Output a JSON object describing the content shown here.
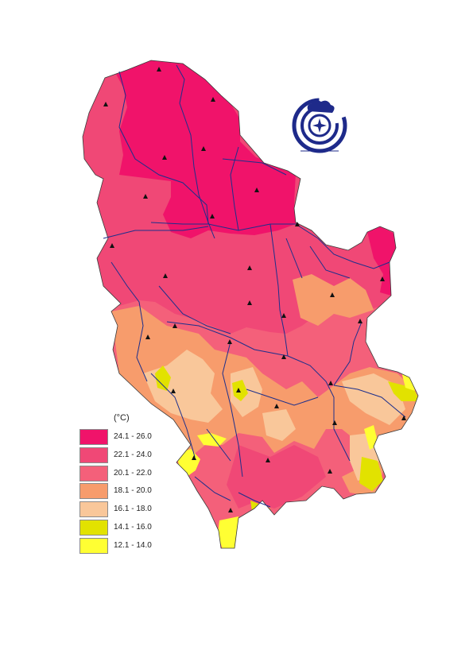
{
  "map": {
    "legend": {
      "unit_label": "(°C)",
      "classes": [
        {
          "label": "24.1 - 26.0",
          "color": "#f0136a"
        },
        {
          "label": "22.1 - 24.0",
          "color": "#f04876"
        },
        {
          "label": "20.1 - 22.0",
          "color": "#f4607a"
        },
        {
          "label": "18.1 - 20.0",
          "color": "#f79c6c"
        },
        {
          "label": "16.1 - 18.0",
          "color": "#f9c79a"
        },
        {
          "label": "14.1 - 16.0",
          "color": "#e2e200"
        },
        {
          "label": "12.1 - 14.0",
          "color": "#ffff33"
        }
      ]
    },
    "colors": {
      "river": "#1c2f8c",
      "border": "#3a3a3a",
      "station_marker": "#111111",
      "logo": "#1e2a8a"
    },
    "icons": {
      "logo": "hydrometeorological-service-logo",
      "station": "triangle-station-marker"
    }
  }
}
